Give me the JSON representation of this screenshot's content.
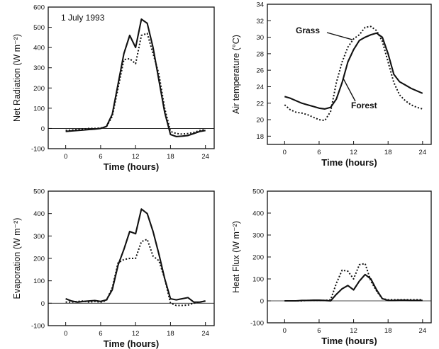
{
  "chart_data": [
    {
      "type": "line",
      "id": "net-radiation",
      "title": "",
      "annotation": "1 July 1993",
      "xlabel": "Time (hours)",
      "ylabel": "Net Radiation (W m⁻²)",
      "xlim": [
        -3,
        25.5
      ],
      "ylim": [
        -100,
        600
      ],
      "x_ticks": [
        0,
        6,
        12,
        18,
        24
      ],
      "y_ticks": [
        -100,
        0,
        100,
        200,
        300,
        400,
        500,
        600
      ],
      "zero_line": true,
      "series": [
        {
          "style": "solid",
          "x": [
            0,
            1,
            2,
            3,
            4,
            5,
            6,
            7,
            8,
            9,
            10,
            11,
            12,
            13,
            14,
            15,
            16,
            17,
            18,
            19,
            20,
            21,
            22,
            23,
            24
          ],
          "y": [
            -15,
            -12,
            -10,
            -8,
            -5,
            -3,
            0,
            10,
            70,
            220,
            370,
            460,
            400,
            540,
            520,
            400,
            240,
            80,
            -30,
            -40,
            -38,
            -35,
            -25,
            -15,
            -10
          ]
        },
        {
          "style": "dotted",
          "x": [
            0,
            1,
            2,
            3,
            4,
            5,
            6,
            7,
            8,
            9,
            10,
            11,
            12,
            13,
            14,
            15,
            16,
            17,
            18,
            19,
            20,
            21,
            22,
            23,
            24
          ],
          "y": [
            -10,
            -8,
            -5,
            -3,
            0,
            0,
            2,
            8,
            60,
            200,
            340,
            345,
            320,
            460,
            470,
            370,
            270,
            100,
            -15,
            -25,
            -28,
            -25,
            -20,
            -10,
            -5
          ]
        }
      ]
    },
    {
      "type": "line",
      "id": "air-temperature",
      "title": "",
      "xlabel": "Time (hours)",
      "ylabel": "Air temperature (°C)",
      "xlim": [
        -3,
        25.5
      ],
      "ylim": [
        17,
        34
      ],
      "x_ticks": [
        0,
        6,
        12,
        18,
        24
      ],
      "y_ticks": [
        18,
        20,
        22,
        24,
        26,
        28,
        30,
        32,
        34
      ],
      "zero_line": false,
      "series": [
        {
          "name": "Forest",
          "style": "solid",
          "x": [
            0,
            1,
            2,
            3,
            4,
            5,
            6,
            7,
            8,
            9,
            10,
            11,
            12,
            13,
            14,
            15,
            16,
            17,
            18,
            19,
            20,
            21,
            22,
            23,
            24
          ],
          "y": [
            22.8,
            22.6,
            22.3,
            22.0,
            21.8,
            21.6,
            21.4,
            21.3,
            21.5,
            22.5,
            24.5,
            27.0,
            28.5,
            29.6,
            30.0,
            30.3,
            30.5,
            30.0,
            28.0,
            25.5,
            24.6,
            24.2,
            23.8,
            23.5,
            23.2
          ]
        },
        {
          "name": "Grass",
          "style": "dotted",
          "x": [
            0,
            1,
            2,
            3,
            4,
            5,
            6,
            7,
            8,
            9,
            10,
            11,
            12,
            13,
            14,
            15,
            16,
            17,
            18,
            19,
            20,
            21,
            22,
            23,
            24
          ],
          "y": [
            21.8,
            21.2,
            20.9,
            20.8,
            20.6,
            20.3,
            20.0,
            19.9,
            21.0,
            24.5,
            27.0,
            28.8,
            29.8,
            30.3,
            31.2,
            31.3,
            30.8,
            29.5,
            27.0,
            24.5,
            23.0,
            22.3,
            21.8,
            21.5,
            21.3
          ]
        }
      ],
      "labels": {
        "grass": "Grass",
        "forest": "Forest"
      }
    },
    {
      "type": "line",
      "id": "evaporation",
      "title": "",
      "xlabel": "Time (hours)",
      "ylabel": "Evaporation (W m⁻²)",
      "xlim": [
        -3,
        25.5
      ],
      "ylim": [
        -100,
        500
      ],
      "x_ticks": [
        0,
        6,
        12,
        18,
        24
      ],
      "y_ticks": [
        -100,
        0,
        100,
        200,
        300,
        400,
        500
      ],
      "zero_line": true,
      "series": [
        {
          "style": "solid",
          "x": [
            0,
            1,
            2,
            3,
            4,
            5,
            6,
            7,
            8,
            9,
            10,
            11,
            12,
            13,
            14,
            15,
            16,
            17,
            18,
            19,
            20,
            21,
            22,
            23,
            24
          ],
          "y": [
            20,
            10,
            5,
            8,
            10,
            12,
            8,
            15,
            60,
            170,
            240,
            320,
            310,
            420,
            400,
            320,
            220,
            110,
            20,
            15,
            20,
            25,
            5,
            5,
            10
          ]
        },
        {
          "style": "dotted",
          "x": [
            0,
            1,
            2,
            3,
            4,
            5,
            6,
            7,
            8,
            9,
            10,
            11,
            12,
            13,
            14,
            15,
            16,
            17,
            18,
            19,
            20,
            21,
            22,
            23,
            24
          ],
          "y": [
            5,
            5,
            8,
            10,
            5,
            8,
            5,
            12,
            70,
            180,
            195,
            200,
            200,
            275,
            285,
            210,
            190,
            110,
            0,
            -10,
            -10,
            -8,
            0,
            5,
            10
          ]
        }
      ]
    },
    {
      "type": "line",
      "id": "heat-flux",
      "title": "",
      "xlabel": "Time (hours)",
      "ylabel": "Heat Flux (W m⁻²)",
      "xlim": [
        -3,
        25.5
      ],
      "ylim": [
        -100,
        500
      ],
      "x_ticks": [
        0,
        6,
        12,
        18,
        24
      ],
      "y_ticks": [
        -100,
        0,
        100,
        200,
        300,
        400,
        500
      ],
      "zero_line": true,
      "series": [
        {
          "style": "solid",
          "x": [
            0,
            1,
            2,
            3,
            4,
            5,
            6,
            7,
            8,
            9,
            10,
            11,
            12,
            13,
            14,
            15,
            16,
            17,
            18,
            19,
            20,
            21,
            22,
            23,
            24
          ],
          "y": [
            0,
            0,
            0,
            2,
            2,
            3,
            3,
            2,
            0,
            30,
            55,
            70,
            50,
            90,
            120,
            100,
            50,
            10,
            2,
            2,
            3,
            3,
            2,
            2,
            2
          ]
        },
        {
          "style": "dotted",
          "x": [
            0,
            1,
            2,
            3,
            4,
            5,
            6,
            7,
            8,
            9,
            10,
            11,
            12,
            13,
            14,
            15,
            16,
            17,
            18,
            19,
            20,
            21,
            22,
            23,
            24
          ],
          "y": [
            0,
            0,
            0,
            0,
            2,
            2,
            2,
            2,
            5,
            80,
            140,
            135,
            100,
            165,
            170,
            90,
            45,
            10,
            5,
            5,
            5,
            5,
            5,
            5,
            5
          ]
        }
      ]
    }
  ]
}
